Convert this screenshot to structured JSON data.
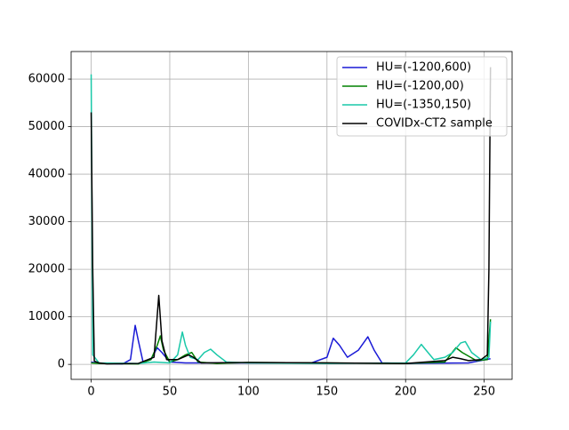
{
  "chart_data": {
    "type": "line",
    "xlim": [
      -12.75,
      267.75
    ],
    "xticks": [
      0,
      50,
      100,
      150,
      200,
      250
    ],
    "ylim": [
      -3150,
      65800
    ],
    "yticks": [
      0,
      10000,
      20000,
      30000,
      40000,
      50000,
      60000
    ],
    "grid": true,
    "legend": "upper right",
    "series": [
      {
        "name": "HU=(-1200,600)",
        "color": "#1a1ad6",
        "x": [
          0,
          5,
          20,
          25,
          28,
          30,
          33,
          38,
          42,
          45,
          50,
          60,
          100,
          140,
          150,
          154,
          158,
          163,
          170,
          176,
          180,
          185,
          200,
          240,
          254
        ],
        "values": [
          500,
          200,
          100,
          1000,
          8200,
          5000,
          500,
          1000,
          3500,
          2500,
          500,
          300,
          300,
          300,
          1500,
          5500,
          4000,
          1500,
          3000,
          5800,
          3000,
          300,
          200,
          300,
          1200
        ]
      },
      {
        "name": "HU=(-1200,00)",
        "color": "#008000",
        "x": [
          0,
          5,
          30,
          38,
          42,
          44,
          46,
          50,
          55,
          60,
          64,
          68,
          80,
          100,
          150,
          200,
          225,
          232,
          236,
          245,
          252,
          254
        ],
        "values": [
          300,
          200,
          100,
          1000,
          4000,
          6000,
          3000,
          500,
          1000,
          2000,
          2500,
          500,
          200,
          400,
          300,
          200,
          500,
          3500,
          2500,
          800,
          1000,
          9500
        ]
      },
      {
        "name": "HU=(-1350,150)",
        "color": "#19c8a8",
        "x": [
          0,
          1,
          5,
          30,
          40,
          50,
          55,
          58,
          60,
          63,
          68,
          72,
          76,
          80,
          86,
          100,
          150,
          200,
          205,
          210,
          213,
          218,
          225,
          230,
          235,
          238,
          242,
          248,
          253,
          254
        ],
        "values": [
          61000,
          2000,
          300,
          200,
          500,
          300,
          2000,
          6800,
          4000,
          1500,
          1000,
          2500,
          3200,
          2000,
          500,
          300,
          200,
          300,
          2000,
          4200,
          3000,
          1000,
          1500,
          2500,
          4500,
          4800,
          2500,
          1000,
          1500,
          9000
        ]
      },
      {
        "name": "COVIDx-CT2 sample",
        "color": "#000000",
        "x": [
          0,
          1,
          2,
          5,
          10,
          30,
          40,
          43,
          45,
          48,
          55,
          62,
          65,
          70,
          100,
          150,
          200,
          225,
          230,
          235,
          240,
          248,
          252,
          253,
          254
        ],
        "values": [
          53000,
          20000,
          700,
          300,
          100,
          200,
          1500,
          14500,
          5000,
          1000,
          1000,
          2000,
          1500,
          300,
          400,
          300,
          200,
          800,
          1500,
          1200,
          800,
          1000,
          2000,
          20000,
          62500
        ]
      }
    ]
  }
}
